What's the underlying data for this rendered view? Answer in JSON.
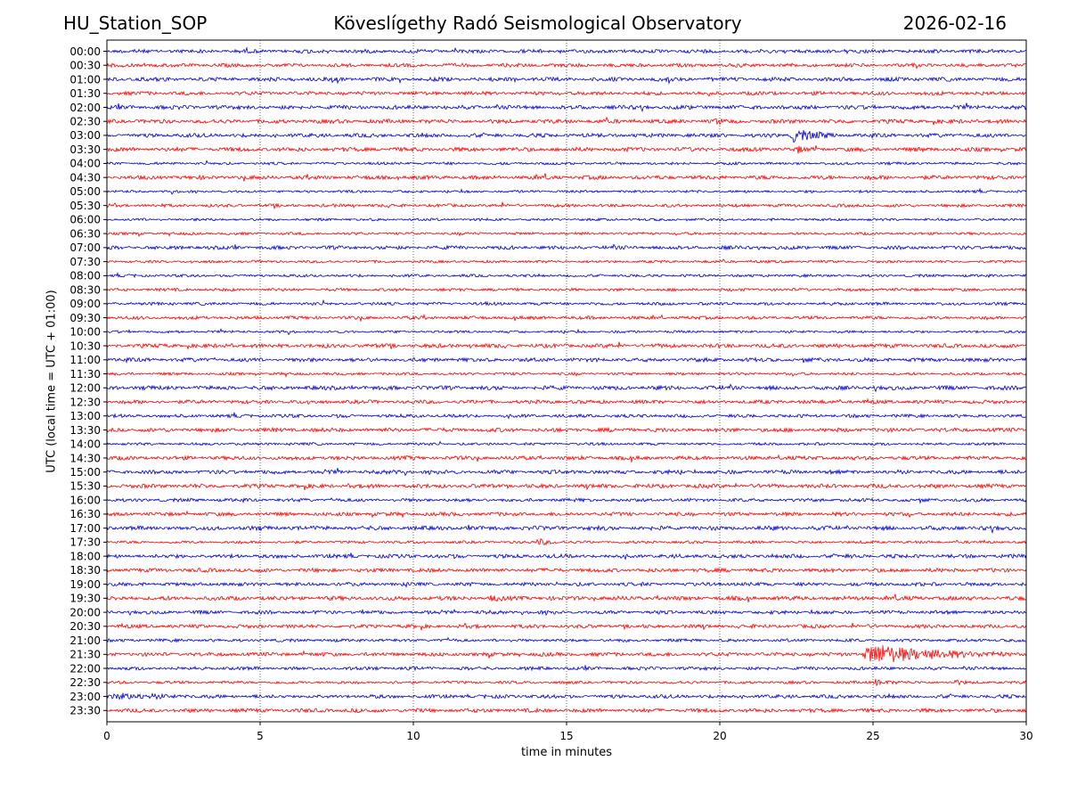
{
  "header": {
    "station": "HU_Station_SOP",
    "title": "Köveslígethy Radó Seismological Observatory",
    "date": "2026-02-16"
  },
  "chart_data": {
    "type": "line",
    "title": "Köveslígethy Radó Seismological Observatory",
    "xlabel": "time in minutes",
    "ylabel": "UTC (local time = UTC + 01:00)",
    "xlim": [
      0,
      30
    ],
    "x_ticks": [
      0,
      5,
      10,
      15,
      20,
      25,
      30
    ],
    "grid": "vertical dotted at x ticks",
    "row_colors": [
      "#0000cc",
      "#ff0000"
    ],
    "rows": [
      "00:00",
      "00:30",
      "01:00",
      "01:30",
      "02:00",
      "02:30",
      "03:00",
      "03:30",
      "04:00",
      "04:30",
      "05:00",
      "05:30",
      "06:00",
      "06:30",
      "07:00",
      "07:30",
      "08:00",
      "08:30",
      "09:00",
      "09:30",
      "10:00",
      "10:30",
      "11:00",
      "11:30",
      "12:00",
      "12:30",
      "13:00",
      "13:30",
      "14:00",
      "14:30",
      "15:00",
      "15:30",
      "16:00",
      "16:30",
      "17:00",
      "17:30",
      "18:00",
      "18:30",
      "19:00",
      "19:30",
      "20:00",
      "20:30",
      "21:00",
      "21:30",
      "22:00",
      "22:30",
      "23:00",
      "23:30"
    ],
    "events": [
      {
        "row": "02:30",
        "start_min": 19.8,
        "duration_min": 0.5,
        "amplitude": 1.2
      },
      {
        "row": "03:00",
        "start_min": 22.3,
        "duration_min": 1.5,
        "amplitude": 3.0
      },
      {
        "row": "03:30",
        "start_min": 22.5,
        "duration_min": 0.3,
        "amplitude": 1.5
      },
      {
        "row": "17:30",
        "start_min": 14.0,
        "duration_min": 1.0,
        "amplitude": 1.5
      },
      {
        "row": "19:30",
        "start_min": 12.5,
        "duration_min": 0.6,
        "amplitude": 1.1
      },
      {
        "row": "21:30",
        "start_min": 24.6,
        "duration_min": 4.6,
        "amplitude": 4.5
      },
      {
        "row": "22:30",
        "start_min": 25.0,
        "duration_min": 1.0,
        "amplitude": 1.3
      },
      {
        "row": "22:30",
        "start_min": 27.6,
        "duration_min": 0.5,
        "amplitude": 1.2
      },
      {
        "row": "23:00",
        "start_min": 0.1,
        "duration_min": 2.8,
        "amplitude": 1.3
      }
    ]
  }
}
